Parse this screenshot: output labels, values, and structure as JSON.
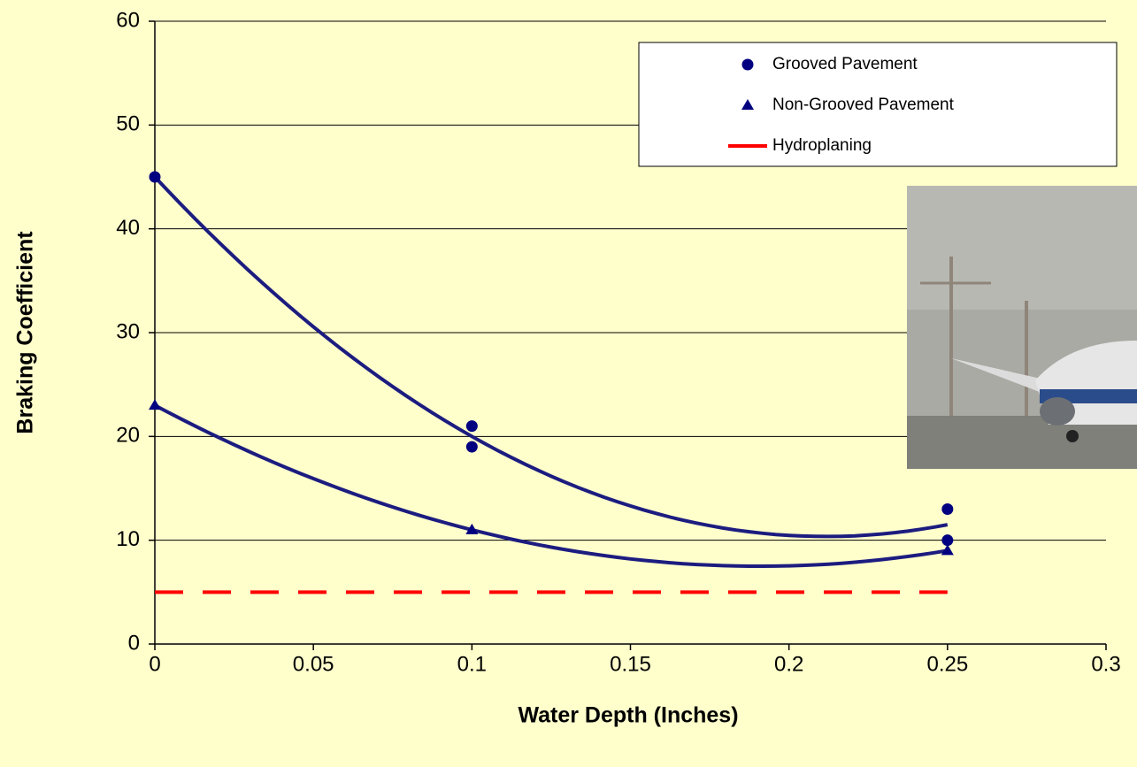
{
  "chart_data": {
    "type": "scatter",
    "x_label": "Water Depth (Inches)",
    "y_label": "Braking Coefficient",
    "xlim": [
      0,
      0.3
    ],
    "xticks": [
      0,
      0.05,
      0.1,
      0.15,
      0.2,
      0.25,
      0.3
    ],
    "ylim": [
      0,
      60
    ],
    "yticks": [
      0,
      10,
      20,
      30,
      40,
      50,
      60
    ],
    "grid": true,
    "legend": "top-right",
    "series": [
      {
        "name": "Grooved Pavement",
        "color": "#000080",
        "marker": "circle",
        "trendline": true,
        "x": [
          0,
          0.1,
          0.1,
          0.25,
          0.25
        ],
        "values": [
          45,
          21,
          19,
          13,
          10
        ]
      },
      {
        "name": "Non-Grooved Pavement",
        "color": "#000080",
        "marker": "triangle",
        "trendline": true,
        "x": [
          0,
          0.1,
          0.25
        ],
        "values": [
          23,
          11,
          9
        ]
      },
      {
        "name": "Hydroplaning",
        "color": "#ff0000",
        "marker": "dashed-line",
        "x": [
          0,
          0.25
        ],
        "values": [
          5,
          5
        ]
      }
    ]
  }
}
